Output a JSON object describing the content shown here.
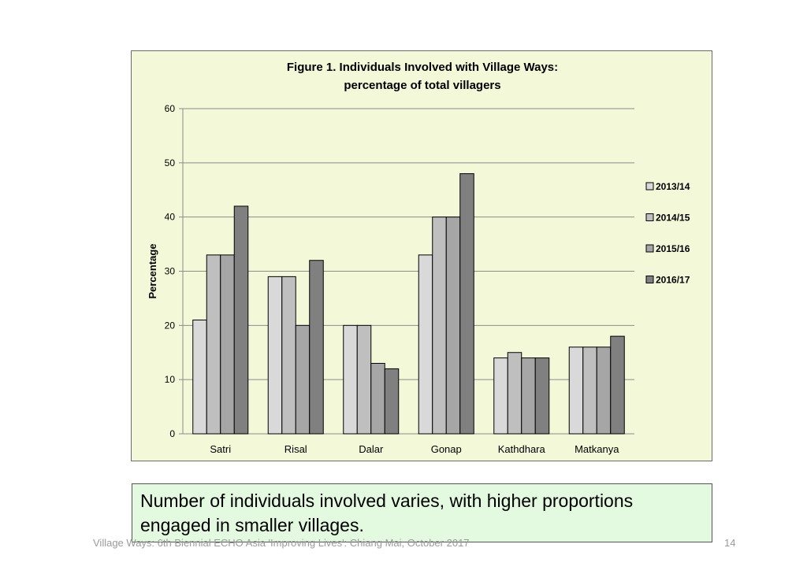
{
  "chart_data": {
    "type": "bar",
    "title": "Figure 1. Individuals Involved with Village Ways:",
    "subtitle": "percentage of total villagers",
    "xlabel": "",
    "ylabel": "Percentage",
    "ylim": [
      0,
      60
    ],
    "yticks": [
      0,
      10,
      20,
      30,
      40,
      50,
      60
    ],
    "grid": true,
    "legend_position": "right",
    "categories": [
      "Satri",
      "Risal",
      "Dalar",
      "Gonap",
      "Kathdhara",
      "Matkanya"
    ],
    "series": [
      {
        "name": "2013/14",
        "color": "#d9d9d9",
        "values": [
          21,
          29,
          20,
          33,
          14,
          16
        ]
      },
      {
        "name": "2014/15",
        "color": "#bfbfbf",
        "values": [
          33,
          29,
          20,
          40,
          15,
          16
        ]
      },
      {
        "name": "2015/16",
        "color": "#a6a6a6",
        "values": [
          33,
          20,
          13,
          40,
          14,
          16
        ]
      },
      {
        "name": "2016/17",
        "color": "#808080",
        "values": [
          42,
          32,
          12,
          48,
          14,
          18
        ]
      }
    ]
  },
  "colors": {
    "panel_background": "#f2f8d8",
    "caption_background": "#e3f9e0"
  },
  "caption": {
    "line1": "Number of individuals involved varies, with higher proportions",
    "line2": "engaged in smaller villages."
  },
  "footer": {
    "text": "Village Ways: 6th Biennial ECHO Asia 'Improving Lives': Chiang Mai, October 2017",
    "page_number": "14"
  }
}
